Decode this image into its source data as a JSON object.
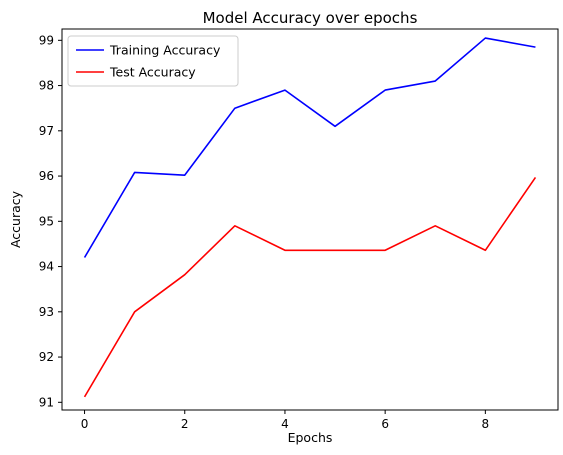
{
  "chart_data": {
    "type": "line",
    "title": "Model Accuracy over epochs",
    "xlabel": "Epochs",
    "ylabel": "Accuracy",
    "x": [
      0,
      1,
      2,
      3,
      4,
      5,
      6,
      7,
      8,
      9
    ],
    "xlim": [
      -0.45,
      9.45
    ],
    "ylim": [
      90.83,
      99.25
    ],
    "xticks": [
      0,
      2,
      4,
      6,
      8
    ],
    "yticks": [
      91,
      92,
      93,
      94,
      95,
      96,
      97,
      98,
      99
    ],
    "grid": false,
    "legend_position": "top-left",
    "series": [
      {
        "name": "Training Accuracy",
        "color": "#0000ff",
        "values": [
          94.2,
          96.08,
          96.02,
          97.5,
          97.9,
          97.1,
          97.9,
          98.1,
          99.05,
          98.85
        ]
      },
      {
        "name": "Test Accuracy",
        "color": "#ff0000",
        "values": [
          91.12,
          93.0,
          93.82,
          94.9,
          94.36,
          94.36,
          94.36,
          94.9,
          94.36,
          95.97
        ]
      }
    ]
  }
}
